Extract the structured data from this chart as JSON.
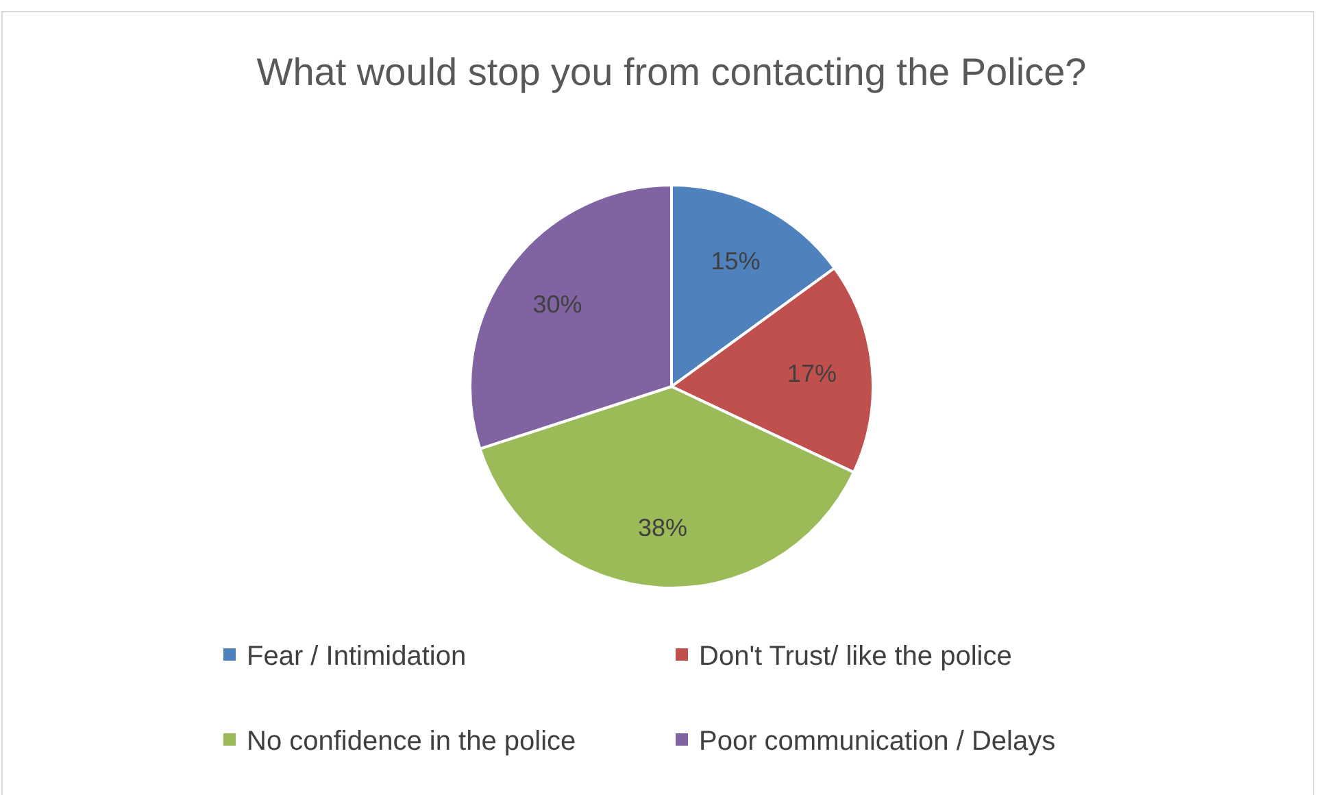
{
  "chart_data": {
    "type": "pie",
    "title": "What would stop you from contacting the Police?",
    "categories": [
      "Fear / Intimidation",
      "Don't Trust/ like the police",
      "No confidence in the police",
      "Poor communication / Delays"
    ],
    "values": [
      15,
      17,
      38,
      30
    ],
    "colors": [
      "#4f81bd",
      "#c0504d",
      "#9bbb59",
      "#8064a2"
    ],
    "value_labels": [
      "15%",
      "17%",
      "38%",
      "30%"
    ],
    "legend": "bottom"
  }
}
